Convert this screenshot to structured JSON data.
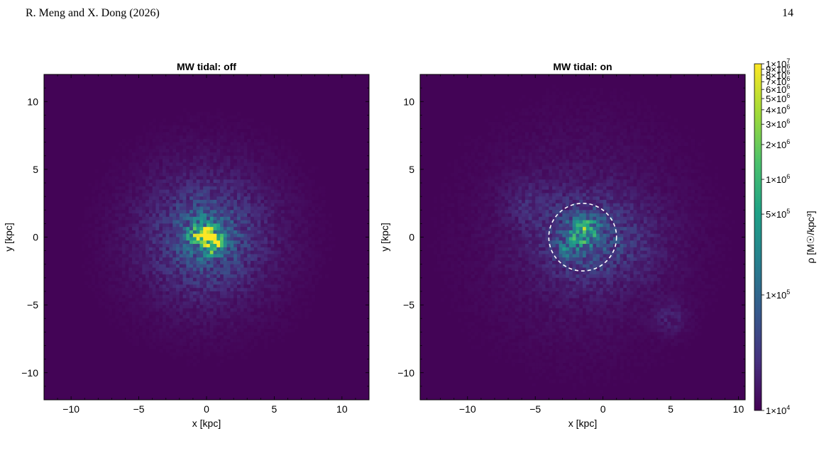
{
  "header": {
    "authors": "R. Meng and X. Dong (2026)",
    "page_number": "14"
  },
  "colors": {
    "background": "#430456",
    "colormap": [
      "#440154",
      "#46317e",
      "#365a8c",
      "#277f8e",
      "#1fa187",
      "#4ac16d",
      "#a0da39",
      "#fde725"
    ],
    "circle": "#ffffff"
  },
  "chart_data": [
    {
      "type": "heatmap",
      "title": "MW tidal: off",
      "xlabel": "x [kpc]",
      "ylabel": "y [kpc]",
      "xlim": [
        -12,
        12
      ],
      "ylim": [
        -12,
        12
      ],
      "xticks": [
        -10,
        -5,
        0,
        5,
        10
      ],
      "yticks": [
        -10,
        -5,
        0,
        5,
        10
      ],
      "xtick_labels": [
        "−10",
        "−5",
        "0",
        "5",
        "10"
      ],
      "ytick_labels": [
        "−10",
        "−5",
        "0",
        "5",
        "10"
      ],
      "grid": false,
      "blobs": [
        {
          "x": 0,
          "y": 0,
          "sigma": 4.0,
          "peak": 0.14
        },
        {
          "x": 0,
          "y": 0,
          "sigma": 2.0,
          "peak": 0.18
        },
        {
          "x": 0,
          "y": 0.2,
          "sigma": 0.7,
          "peak": 0.45
        },
        {
          "x": 0,
          "y": 0.2,
          "sigma": 0.25,
          "peak": 1.0
        },
        {
          "x": 0.9,
          "y": -0.4,
          "sigma": 0.35,
          "peak": 0.5
        },
        {
          "x": -0.9,
          "y": 0.1,
          "sigma": 0.3,
          "peak": 0.35
        },
        {
          "x": 0.3,
          "y": -0.9,
          "sigma": 0.35,
          "peak": 0.3
        }
      ]
    },
    {
      "type": "heatmap",
      "title": "MW tidal: on",
      "xlabel": "x [kpc]",
      "ylabel": "y [kpc]",
      "xlim": [
        -13.5,
        10.5
      ],
      "ylim": [
        -12,
        12
      ],
      "xticks": [
        -10,
        -5,
        0,
        5,
        10
      ],
      "yticks": [
        -10,
        -5,
        0,
        5,
        10
      ],
      "xtick_labels": [
        "−10",
        "−5",
        "0",
        "5",
        "10"
      ],
      "ytick_labels": [
        "−10",
        "−5",
        "0",
        "5",
        "10"
      ],
      "grid": false,
      "circle": {
        "cx": -1.5,
        "cy": 0,
        "r": 2.5
      },
      "blobs": [
        {
          "x": -1.5,
          "y": 0,
          "sigma": 5.5,
          "peak": 0.07
        },
        {
          "x": -1.5,
          "y": 0,
          "sigma": 2.0,
          "peak": 0.18
        },
        {
          "x": -1.5,
          "y": 0.3,
          "sigma": 0.7,
          "peak": 0.35
        },
        {
          "x": -2.6,
          "y": -0.8,
          "sigma": 0.5,
          "peak": 0.18
        },
        {
          "x": -0.6,
          "y": 1.0,
          "sigma": 0.5,
          "peak": 0.16
        },
        {
          "x": 2.0,
          "y": -0.5,
          "sigma": 2.0,
          "peak": 0.06
        },
        {
          "x": 5.0,
          "y": -6.0,
          "sigma": 0.8,
          "peak": 0.07
        },
        {
          "x": -5.5,
          "y": 2.5,
          "sigma": 1.2,
          "peak": 0.06
        }
      ]
    }
  ],
  "colorbar": {
    "label": "ρ [M☉/kpc³]",
    "scale": "log",
    "ticks": [
      {
        "value": 10000000.0,
        "base": "1×10",
        "exp": "7"
      },
      {
        "value": 9000000.0,
        "base": "9×10",
        "exp": "6"
      },
      {
        "value": 8000000.0,
        "base": "8×10",
        "exp": "6"
      },
      {
        "value": 7000000.0,
        "base": "7×10",
        "exp": "6"
      },
      {
        "value": 6000000.0,
        "base": "6×10",
        "exp": "6"
      },
      {
        "value": 5000000.0,
        "base": "5×10",
        "exp": "6"
      },
      {
        "value": 4000000.0,
        "base": "4×10",
        "exp": "6"
      },
      {
        "value": 3000000.0,
        "base": "3×10",
        "exp": "6"
      },
      {
        "value": 2000000.0,
        "base": "2×10",
        "exp": "6"
      },
      {
        "value": 1000000.0,
        "base": "1×10",
        "exp": "6"
      },
      {
        "value": 500000.0,
        "base": "5×10",
        "exp": "5"
      },
      {
        "value": 100000.0,
        "base": "1×10",
        "exp": "5"
      },
      {
        "value": 10000.0,
        "base": "1×10",
        "exp": "4"
      }
    ]
  }
}
